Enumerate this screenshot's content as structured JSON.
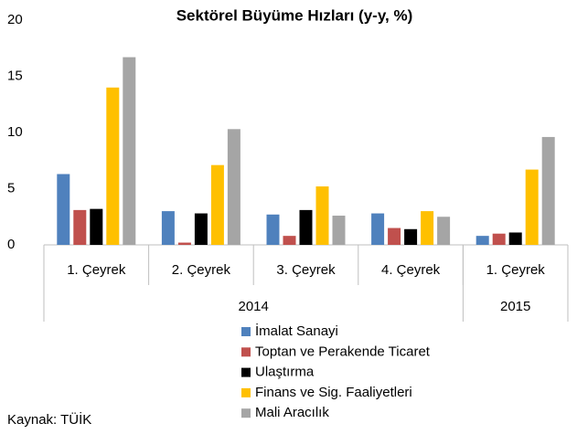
{
  "chart_data": {
    "type": "bar",
    "title": "Sektörel Büyüme Hızları (y-y, %)",
    "categories": [
      "1. Çeyrek",
      "2. Çeyrek",
      "3. Çeyrek",
      "4. Çeyrek",
      "1. Çeyrek"
    ],
    "groups": [
      {
        "label": "2014",
        "span": 4
      },
      {
        "label": "2015",
        "span": 1
      }
    ],
    "series": [
      {
        "name": "İmalat Sanayi",
        "color": "#4f81bd",
        "values": [
          6.3,
          3.0,
          2.7,
          2.8,
          0.8
        ]
      },
      {
        "name": "Toptan ve Perakende Ticaret",
        "color": "#c0504d",
        "values": [
          3.1,
          0.2,
          0.8,
          1.5,
          1.0
        ]
      },
      {
        "name": "Ulaştırma",
        "color": "#000000",
        "values": [
          3.2,
          2.8,
          3.1,
          1.4,
          1.1
        ]
      },
      {
        "name": "Finans ve Sig. Faaliyetleri",
        "color": "#ffc000",
        "values": [
          14.0,
          7.1,
          5.2,
          3.0,
          6.7
        ]
      },
      {
        "name": "Mali Aracılık",
        "color": "#a5a5a5",
        "values": [
          16.7,
          10.3,
          2.6,
          2.5,
          9.6
        ]
      }
    ],
    "ylim": [
      0,
      20
    ],
    "yticks": [
      0,
      5,
      10,
      15,
      20
    ],
    "grid": false,
    "source": "Kaynak: TÜİK"
  }
}
